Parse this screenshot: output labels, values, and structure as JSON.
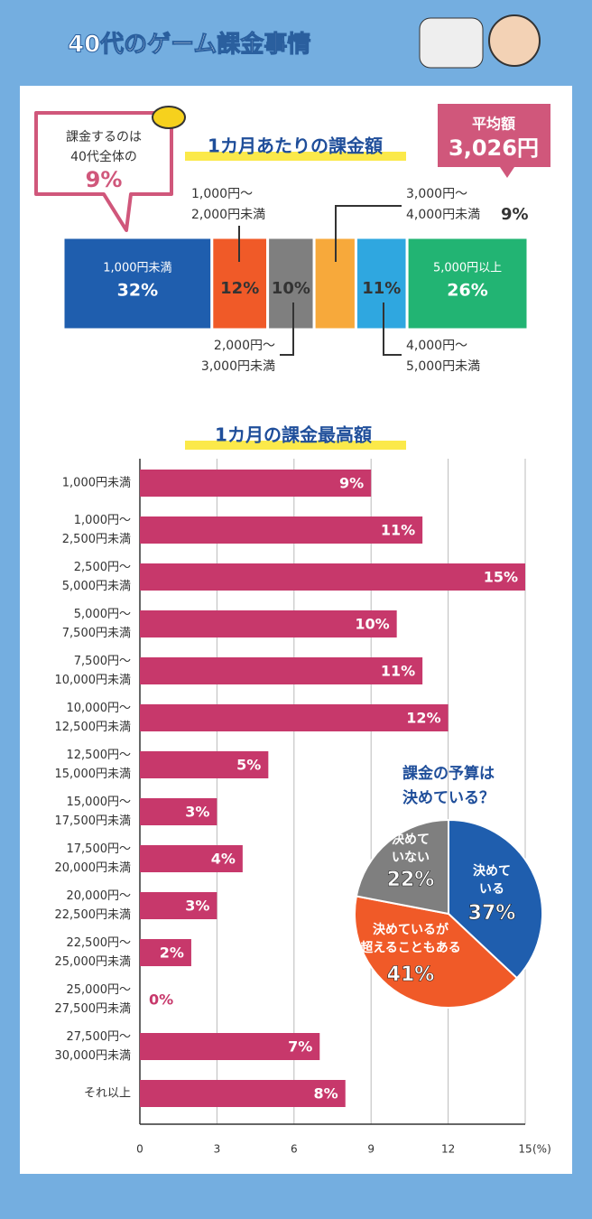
{
  "header": {
    "title": "40代のゲーム課金事情"
  },
  "callout": {
    "lines": [
      "課金するのは",
      "40代全体の"
    ],
    "value": "9%"
  },
  "average": {
    "label": "平均額",
    "value": "3,026円"
  },
  "chart_data": [
    {
      "type": "stacked-bar",
      "title": "1カ月あたりの課金額",
      "categories": [
        [
          "1,000円未満"
        ],
        [
          "1,000円～",
          "2,000円未満"
        ],
        [
          "2,000円～",
          "3,000円未満"
        ],
        [
          "3,000円～",
          "4,000円未満"
        ],
        [
          "4,000円～",
          "5,000円未満"
        ],
        [
          "5,000円以上"
        ]
      ],
      "values": [
        32,
        12,
        10,
        9,
        11,
        26
      ],
      "value_labels": [
        "32%",
        "12%",
        "10%",
        "9%",
        "11%",
        "26%"
      ],
      "colors": [
        "#1f5eae",
        "#f05a28",
        "#7f7f7f",
        "#f7a93b",
        "#2fa7e0",
        "#22b473"
      ]
    },
    {
      "type": "hbar",
      "title": "1カ月の課金最高額",
      "categories": [
        [
          "1,000円未満"
        ],
        [
          "1,000円～",
          "2,500円未満"
        ],
        [
          "2,500円～",
          "5,000円未満"
        ],
        [
          "5,000円～",
          "7,500円未満"
        ],
        [
          "7,500円～",
          "10,000円未満"
        ],
        [
          "10,000円～",
          "12,500円未満"
        ],
        [
          "12,500円～",
          "15,000円未満"
        ],
        [
          "15,000円～",
          "17,500円未満"
        ],
        [
          "17,500円～",
          "20,000円未満"
        ],
        [
          "20,000円～",
          "22,500円未満"
        ],
        [
          "22,500円～",
          "25,000円未満"
        ],
        [
          "25,000円～",
          "27,500円未満"
        ],
        [
          "27,500円～",
          "30,000円未満"
        ],
        [
          "それ以上"
        ]
      ],
      "values": [
        9,
        11,
        15,
        10,
        11,
        12,
        5,
        3,
        4,
        3,
        2,
        0,
        7,
        8
      ],
      "value_labels": [
        "9%",
        "11%",
        "15%",
        "10%",
        "11%",
        "12%",
        "5%",
        "3%",
        "4%",
        "3%",
        "2%",
        "0%",
        "7%",
        "8%"
      ],
      "color": "#c7386b",
      "xlim": [
        0,
        15
      ],
      "xticks": [
        0,
        3,
        6,
        9,
        12,
        15
      ],
      "x_unit": "(%)",
      "grid": true
    },
    {
      "type": "pie",
      "title": [
        "課金の予算は",
        "決めている？"
      ],
      "categories": [
        [
          "決めて",
          "いる"
        ],
        [
          "決めているが",
          "超えることもある"
        ],
        [
          "決めて",
          "いない"
        ]
      ],
      "values": [
        37,
        41,
        22
      ],
      "value_labels": [
        "37%",
        "41%",
        "22%"
      ],
      "colors": [
        "#1f5eae",
        "#f05a28",
        "#7f7f7f"
      ]
    }
  ]
}
